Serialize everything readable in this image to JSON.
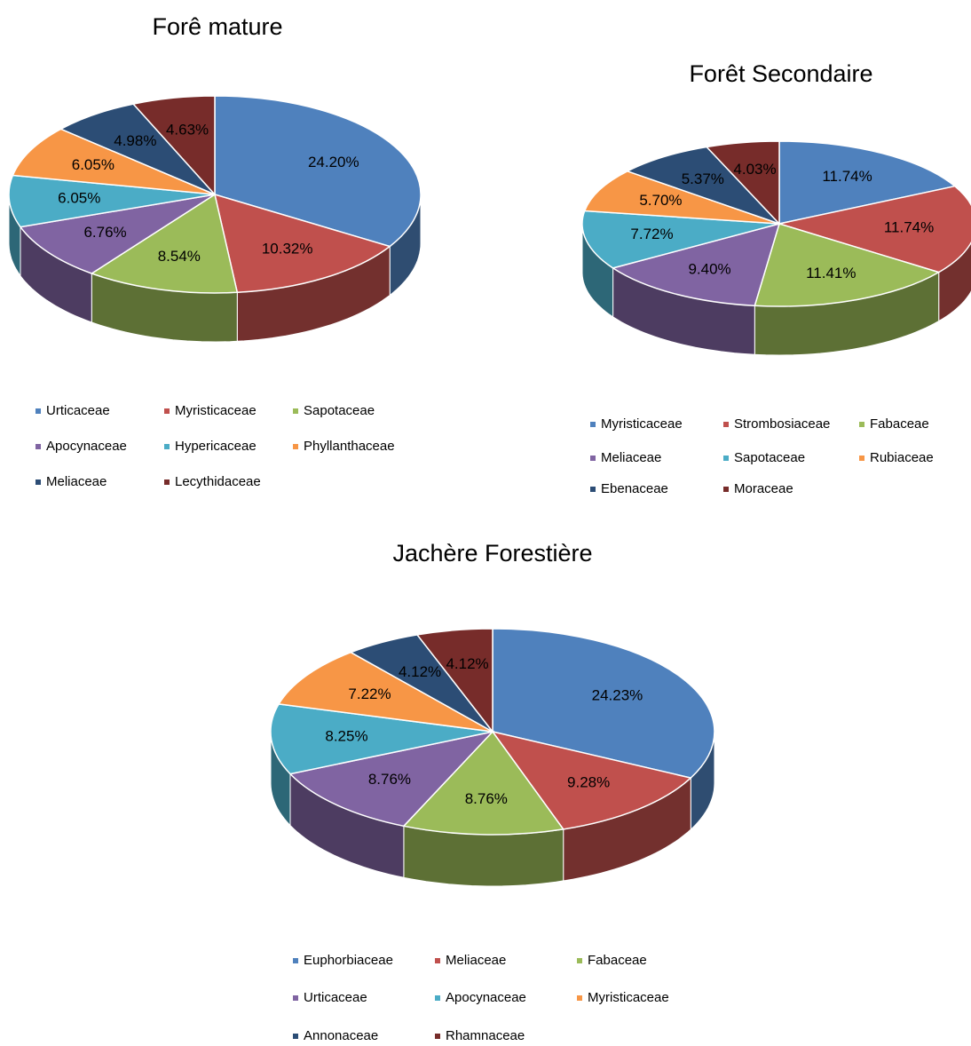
{
  "chart_data": [
    {
      "type": "pie",
      "title": "Forê mature",
      "categories": [
        "Urticaceae",
        "Myristicaceae",
        "Sapotaceae",
        "Apocynaceae",
        "Hypericaceae",
        "Phyllanthaceae",
        "Meliaceae",
        "Lecythidaceae"
      ],
      "values": [
        24.2,
        10.32,
        8.54,
        6.76,
        6.05,
        6.05,
        4.98,
        4.63
      ],
      "value_labels": [
        "24.20%",
        "10.32%",
        "8.54%",
        "6.76%",
        "6.05%",
        "6.05%",
        "4.98%",
        "4.63%"
      ],
      "colors": [
        "#4f81bd",
        "#c0504d",
        "#9bbb59",
        "#8064a2",
        "#4bacc6",
        "#f79646",
        "#2c4d75",
        "#772c2a"
      ]
    },
    {
      "type": "pie",
      "title": "Forêt Secondaire",
      "categories": [
        "Myristicaceae",
        "Strombosiaceae",
        "Fabaceae",
        "Meliaceae",
        "Sapotaceae",
        "Rubiaceae",
        "Ebenaceae",
        "Moraceae"
      ],
      "values": [
        11.74,
        11.74,
        11.41,
        9.4,
        7.72,
        5.7,
        5.37,
        4.03
      ],
      "value_labels": [
        "11.74%",
        "11.74%",
        "11.41%",
        "9.40%",
        "7.72%",
        "5.70%",
        "5.37%",
        "4.03%"
      ],
      "colors": [
        "#4f81bd",
        "#c0504d",
        "#9bbb59",
        "#8064a2",
        "#4bacc6",
        "#f79646",
        "#2c4d75",
        "#772c2a"
      ]
    },
    {
      "type": "pie",
      "title": "Jachère Forestière",
      "categories": [
        "Euphorbiaceae",
        "Meliaceae",
        "Fabaceae",
        "Urticaceae",
        "Apocynaceae",
        "Myristicaceae",
        "Annonaceae",
        "Rhamnaceae"
      ],
      "values": [
        24.23,
        9.28,
        8.76,
        8.76,
        8.25,
        7.22,
        4.12,
        4.12
      ],
      "value_labels": [
        "24.23%",
        "9.28%",
        "8.76%",
        "8.76%",
        "8.25%",
        "7.22%",
        "4.12%",
        "4.12%"
      ],
      "colors": [
        "#4f81bd",
        "#c0504d",
        "#9bbb59",
        "#8064a2",
        "#4bacc6",
        "#f79646",
        "#2c4d75",
        "#772c2a"
      ]
    }
  ]
}
